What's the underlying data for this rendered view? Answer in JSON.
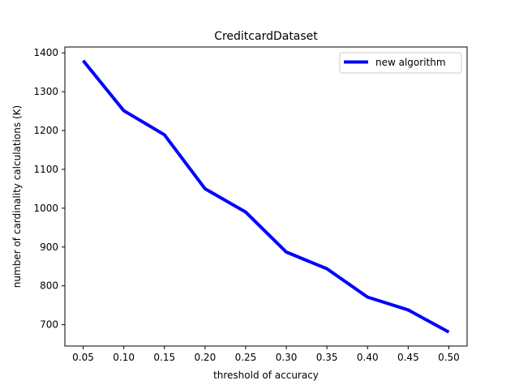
{
  "chart_data": {
    "type": "line",
    "title": "CreditcardDataset",
    "xlabel": "threshold of accuracy",
    "ylabel": "number of cardinality calculations (K)",
    "x": [
      0.05,
      0.1,
      0.15,
      0.2,
      0.25,
      0.3,
      0.35,
      0.4,
      0.45,
      0.5
    ],
    "x_tick_labels": [
      "0.05",
      "0.10",
      "0.15",
      "0.20",
      "0.25",
      "0.30",
      "0.35",
      "0.40",
      "0.45",
      "0.50"
    ],
    "y_ticks": [
      700,
      800,
      900,
      1000,
      1100,
      1200,
      1300,
      1400
    ],
    "y_tick_labels": [
      "700",
      "800",
      "900",
      "1000",
      "1100",
      "1200",
      "1300",
      "1400"
    ],
    "xlim": [
      0.0275,
      0.5225
    ],
    "ylim": [
      645,
      1415
    ],
    "series": [
      {
        "name": "new algorithm",
        "color": "#0000ff",
        "values": [
          1380,
          1251,
          1189,
          1050,
          990,
          887,
          844,
          771,
          738,
          681
        ]
      }
    ],
    "legend": "top-right",
    "grid": false
  }
}
